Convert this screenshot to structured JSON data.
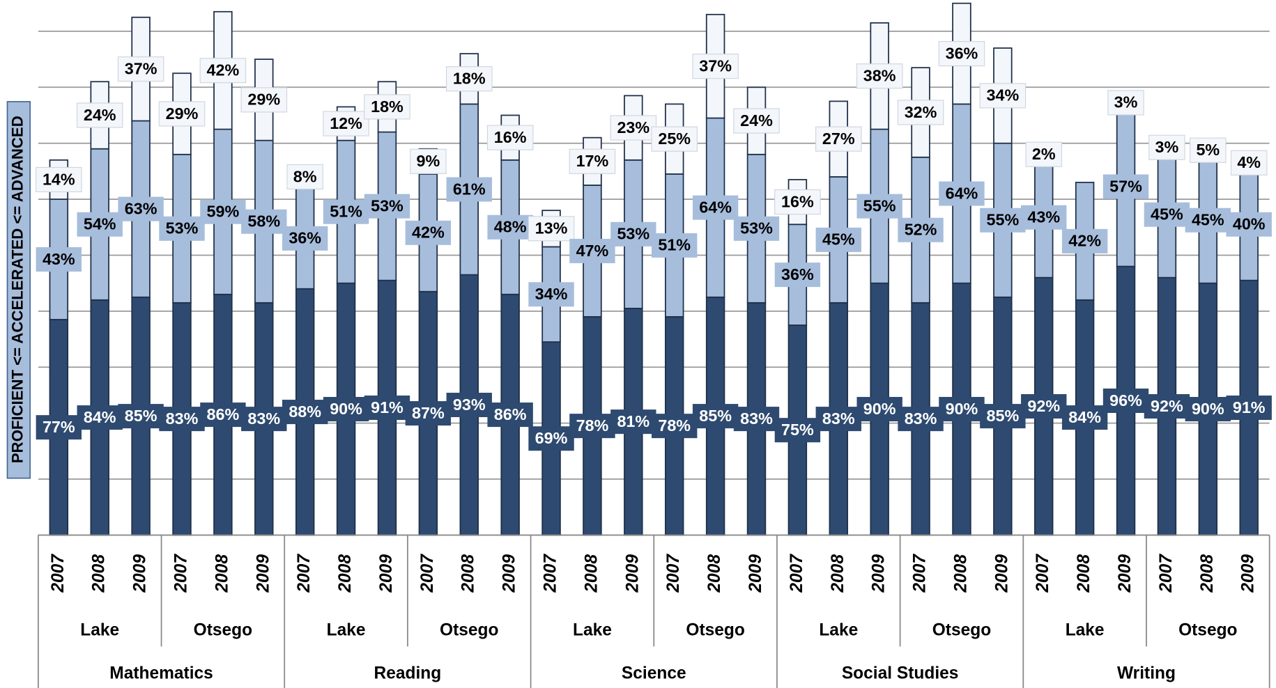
{
  "chart_data": {
    "type": "stacked_bar",
    "y_label": "PROFICIENT <= ACCELERATED <= ADVANCED",
    "categories": [
      "2007",
      "2008",
      "2009",
      "2007",
      "2008",
      "2009",
      "2007",
      "2008",
      "2009",
      "2007",
      "2008",
      "2009",
      "2007",
      "2008",
      "2009",
      "2007",
      "2008",
      "2009",
      "2007",
      "2008",
      "2009",
      "2007",
      "2008",
      "2009",
      "2007",
      "2008",
      "2009",
      "2007",
      "2008",
      "2009"
    ],
    "counties": [
      "Lake",
      "Otsego",
      "Lake",
      "Otsego",
      "Lake",
      "Otsego",
      "Lake",
      "Otsego",
      "Lake",
      "Otsego"
    ],
    "subjects": [
      "Mathematics",
      "Reading",
      "Science",
      "Social Studies",
      "Writing"
    ],
    "series": [
      {
        "color": "#2e4a70",
        "values": [
          77,
          84,
          85,
          83,
          86,
          83,
          88,
          90,
          91,
          87,
          93,
          86,
          69,
          78,
          81,
          78,
          85,
          83,
          75,
          83,
          90,
          83,
          90,
          85,
          92,
          84,
          96,
          92,
          90,
          91
        ],
        "value_labels": [
          "77%",
          "84%",
          "85%",
          "83%",
          "86%",
          "83%",
          "88%",
          "90%",
          "91%",
          "87%",
          "93%",
          "86%",
          "69%",
          "78%",
          "81%",
          "78%",
          "85%",
          "83%",
          "75%",
          "83%",
          "90%",
          "83%",
          "90%",
          "85%",
          "92%",
          "84%",
          "96%",
          "92%",
          "90%",
          "91%"
        ]
      },
      {
        "color": "#a7bddc",
        "values": [
          43,
          54,
          63,
          53,
          59,
          58,
          36,
          51,
          53,
          42,
          61,
          48,
          34,
          47,
          53,
          51,
          64,
          53,
          36,
          45,
          55,
          52,
          64,
          55,
          43,
          42,
          57,
          45,
          45,
          40
        ],
        "value_labels": [
          "43%",
          "54%",
          "63%",
          "53%",
          "59%",
          "58%",
          "36%",
          "51%",
          "53%",
          "42%",
          "61%",
          "48%",
          "34%",
          "47%",
          "53%",
          "51%",
          "64%",
          "53%",
          "36%",
          "45%",
          "55%",
          "52%",
          "64%",
          "55%",
          "43%",
          "42%",
          "57%",
          "45%",
          "45%",
          "40%"
        ]
      },
      {
        "color": "#f3f6fb",
        "values": [
          14,
          24,
          37,
          29,
          42,
          29,
          8,
          12,
          18,
          9,
          18,
          16,
          13,
          17,
          23,
          25,
          37,
          24,
          16,
          27,
          38,
          32,
          36,
          34,
          2,
          null,
          3,
          3,
          5,
          4
        ],
        "value_labels": [
          "14%",
          "24%",
          "37%",
          "29%",
          "42%",
          "29%",
          "8%",
          "12%",
          "18%",
          "9%",
          "18%",
          "16%",
          "13%",
          "17%",
          "23%",
          "25%",
          "37%",
          "24%",
          "16%",
          "27%",
          "38%",
          "32%",
          "36%",
          "34%",
          "2%",
          null,
          "3%",
          "3%",
          "5%",
          "4%"
        ]
      }
    ],
    "ylim": [
      0,
      190
    ],
    "yticks": [
      0,
      20,
      40,
      60,
      80,
      100,
      120,
      140,
      160,
      180
    ],
    "grid": true
  }
}
